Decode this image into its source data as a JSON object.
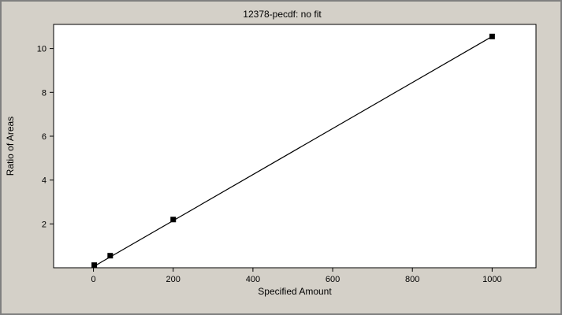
{
  "chart_data": {
    "type": "scatter",
    "title": "12378-pecdf: no fit",
    "xlabel": "Specified Amount",
    "ylabel": "Ratio of Areas",
    "xlim": [
      -100,
      1110
    ],
    "ylim": [
      0,
      11.1
    ],
    "x_ticks": [
      0,
      200,
      400,
      600,
      800,
      1000
    ],
    "y_ticks": [
      2,
      4,
      6,
      8,
      10
    ],
    "grid": false,
    "series": [
      {
        "points": [
          {
            "x": 2,
            "y": 0.12
          },
          {
            "x": 42,
            "y": 0.55
          },
          {
            "x": 200,
            "y": 2.2
          },
          {
            "x": 1000,
            "y": 10.55
          }
        ]
      }
    ],
    "fit_line": {
      "x": [
        0,
        1000
      ],
      "y": [
        0.05,
        10.55
      ]
    },
    "colors": {
      "background": "#d4d0c8",
      "plot_area": "#ffffff",
      "marker": "#000000",
      "line": "#000000"
    }
  }
}
